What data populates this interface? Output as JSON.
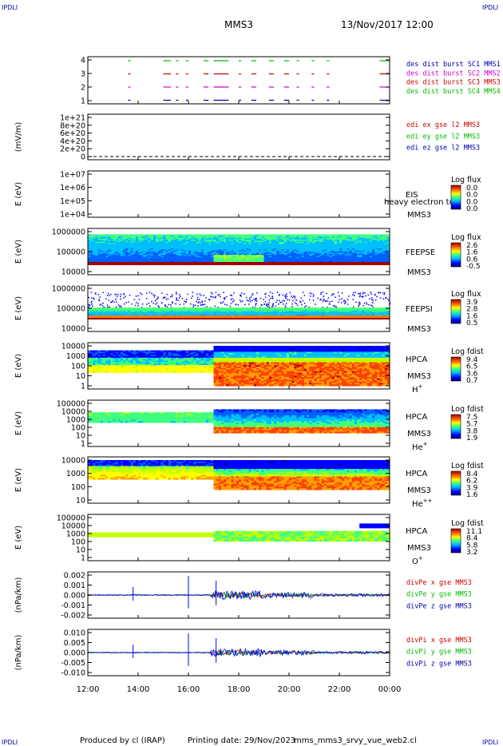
{
  "header": {
    "corner_label": "IPDLI",
    "spacecraft": "MMS3",
    "datetime": "13/Nov/2017 12:00"
  },
  "footer": {
    "produced_by": "Produced by cl (IRAP)",
    "printing_date": "Printing date: 29/Nov/2023",
    "file": "mms_mms3_srvy_vue_web2.cl"
  },
  "colors": {
    "mms1": "#0000aa",
    "mms2": "#cc00cc",
    "mms3": "#cc0000",
    "mms4": "#00bb00"
  },
  "chart_data": {
    "type": "multi-panel",
    "x_axis": {
      "ticks": [
        "12:00",
        "14:00",
        "16:00",
        "18:00",
        "20:00",
        "22:00",
        "00:00"
      ],
      "range_hours": [
        12,
        24
      ]
    },
    "panels": [
      {
        "id": "burst",
        "ylabel": "",
        "yticks": [
          "4",
          "3",
          "2",
          "1"
        ],
        "legend": [
          {
            "label": "des dist burst SC1 MMS1",
            "color": "#0000aa"
          },
          {
            "label": "des dist burst SC2 MMS2",
            "color": "#cc00cc"
          },
          {
            "label": "des dist burst SC3 MMS3",
            "color": "#cc0000"
          },
          {
            "label": "des dist burst SC4 MMS4",
            "color": "#00bb00"
          }
        ]
      },
      {
        "id": "edi",
        "ylabel": "(mV/m)",
        "yticks": [
          "1e+21",
          "8e+20",
          "6e+20",
          "4e+20",
          "2e+20",
          "0"
        ],
        "legend": [
          {
            "label": "edi ex gse l2 MMS3",
            "color": "#cc0000"
          },
          {
            "label": "edi ey gse l2 MMS3",
            "color": "#00bb00"
          },
          {
            "label": "edi ez gse l2 MMS3",
            "color": "#0000aa"
          }
        ]
      },
      {
        "id": "eis",
        "ylabel": "E (eV)",
        "yticks": [
          "1e+07",
          "1e+06",
          "1e+05",
          "1e+04"
        ],
        "title": "EIS",
        "overlay": "heavy electron to",
        "sc": "MMS3",
        "cbar_title": "Log flux",
        "cbar_ticks": [
          "0.0",
          "0.0",
          "0.0",
          "0.0"
        ]
      },
      {
        "id": "feepse",
        "ylabel": "E (eV)",
        "yticks": [
          "1000000",
          "100000",
          "10000"
        ],
        "title": "FEEPSE",
        "sc": "MMS3",
        "cbar_title": "Log flux",
        "cbar_ticks": [
          "2.6",
          "1.6",
          "0.6",
          "-0.5"
        ]
      },
      {
        "id": "feepsi",
        "ylabel": "E (eV)",
        "yticks": [
          "1000000",
          "100000",
          "10000"
        ],
        "title": "FEEPSI",
        "sc": "MMS3",
        "cbar_title": "Log flux",
        "cbar_ticks": [
          "3.9",
          "2.8",
          "1.6",
          "0.5"
        ]
      },
      {
        "id": "hpca_h",
        "ylabel": "E (eV)",
        "yticks": [
          "10000",
          "1000",
          "100",
          "10",
          "1"
        ],
        "title": "HPCA",
        "sc": "MMS3",
        "species": "H",
        "species_sup": "+",
        "cbar_title": "Log fdist",
        "cbar_ticks": [
          "9.4",
          "6.5",
          "3.6",
          "0.7"
        ]
      },
      {
        "id": "hpca_he",
        "ylabel": "E (eV)",
        "yticks": [
          "100000",
          "10000",
          "1000",
          "100",
          "10",
          "1"
        ],
        "title": "HPCA",
        "sc": "MMS3",
        "species": "He",
        "species_sup": "+",
        "cbar_title": "Log fdist",
        "cbar_ticks": [
          "7.5",
          "5.7",
          "3.8",
          "1.9"
        ]
      },
      {
        "id": "hpca_hepp",
        "ylabel": "E (eV)",
        "yticks": [
          "10000",
          "1000",
          "100",
          "10"
        ],
        "title": "HPCA",
        "sc": "MMS3",
        "species": "He",
        "species_sup": "++",
        "cbar_title": "Log fdist",
        "cbar_ticks": [
          "8.4",
          "6.2",
          "3.9",
          "1.6"
        ]
      },
      {
        "id": "hpca_o",
        "ylabel": "E (eV)",
        "yticks": [
          "100000",
          "10000",
          "1000",
          "100",
          "10",
          "1"
        ],
        "title": "HPCA",
        "sc": "MMS3",
        "species": "O",
        "species_sup": "+",
        "cbar_title": "Log fdist",
        "cbar_ticks": [
          "11.1",
          "8.4",
          "5.8",
          "3.2"
        ]
      },
      {
        "id": "divpe",
        "ylabel": "(nPa/km)",
        "yticks": [
          "0.002",
          "0.001",
          "0.000",
          "-0.001",
          "-0.002"
        ],
        "legend": [
          {
            "label": "divPe x gse MMS3",
            "color": "#cc0000"
          },
          {
            "label": "divPe y gse MMS3",
            "color": "#00bb00"
          },
          {
            "label": "divPe z gse MMS3",
            "color": "#0000aa"
          }
        ]
      },
      {
        "id": "divpi",
        "ylabel": "(nPa/km)",
        "yticks": [
          "0.010",
          "0.005",
          "0.000",
          "-0.005",
          "-0.010"
        ],
        "legend": [
          {
            "label": "divPi x gse MMS3",
            "color": "#cc0000"
          },
          {
            "label": "divPi y gse MMS3",
            "color": "#00bb00"
          },
          {
            "label": "divPi z gse MMS3",
            "color": "#0000aa"
          }
        ]
      }
    ]
  }
}
